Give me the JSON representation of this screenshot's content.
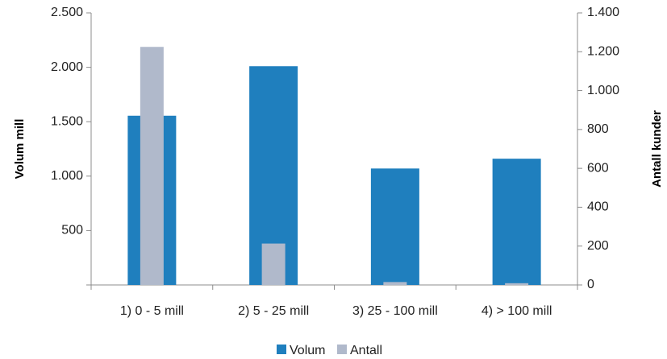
{
  "chart_data": {
    "type": "bar",
    "categories": [
      "1) 0 - 5 mill",
      "2) 5 - 25 mill",
      "3) 25 - 100 mill",
      "4) > 100 mill"
    ],
    "series": [
      {
        "name": "Volum",
        "axis": "left",
        "color": "#1f7fbe",
        "values": [
          1555,
          2010,
          1070,
          1160
        ]
      },
      {
        "name": "Antall",
        "axis": "right",
        "color": "#b0b9cb",
        "values": [
          1225,
          213,
          15,
          9
        ]
      }
    ],
    "y_left": {
      "label": "Volum mill",
      "ylim": [
        0,
        2500
      ],
      "ticks": [
        500,
        1000,
        1500,
        2000,
        2500
      ],
      "tick_labels": [
        "500",
        "1.000",
        "1.500",
        "2.000",
        "2.500"
      ]
    },
    "y_right": {
      "label": "Antall kunder",
      "ylim": [
        0,
        1400
      ],
      "ticks": [
        0,
        200,
        400,
        600,
        800,
        1000,
        1200,
        1400
      ],
      "tick_labels": [
        "0",
        "200",
        "400",
        "600",
        "800",
        "1.000",
        "1.200",
        "1.400"
      ]
    },
    "grid": false,
    "legend": "bottom"
  }
}
